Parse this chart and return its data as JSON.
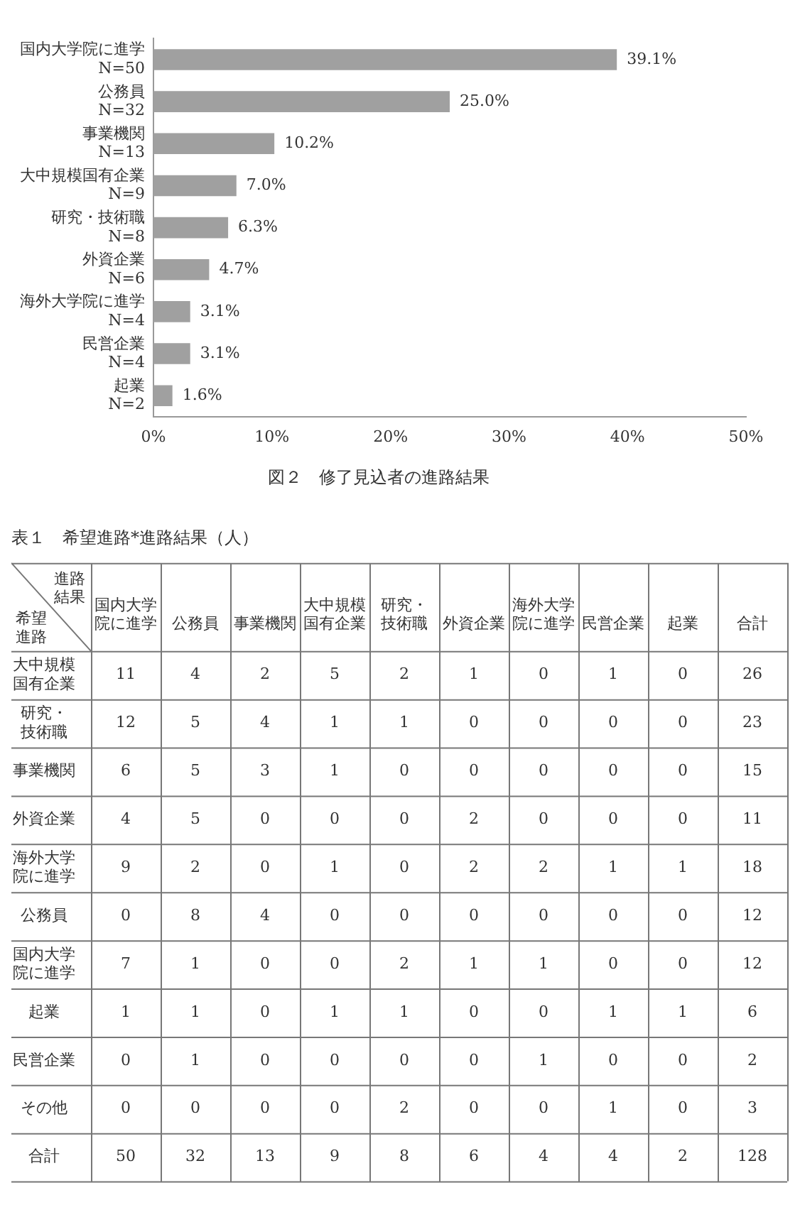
{
  "chart_data": [
    {
      "type": "bar",
      "orientation": "horizontal",
      "title": "図２　修了見込者の進路結果",
      "categories": [
        "国内大学院に進学\nN=50",
        "公務員\nN=32",
        "事業機関\nN=13",
        "大中規模国有企業\nN=9",
        "研究・技術職\nN=8",
        "外資企業\nN=6",
        "海外大学院に進学\nN=4",
        "民営企業\nN=4",
        "起業\nN=2"
      ],
      "values": [
        39.1,
        25.0,
        10.2,
        7.0,
        6.3,
        4.7,
        3.1,
        3.1,
        1.6
      ],
      "value_labels": [
        "39.1%",
        "25.0%",
        "10.2%",
        "7.0%",
        "6.3%",
        "4.7%",
        "3.1%",
        "3.1%",
        "1.6%"
      ],
      "color": "#a0a0a0",
      "xlim": [
        0,
        50
      ],
      "xticks": [
        {
          "value": 0,
          "label": "0%"
        },
        {
          "value": 10,
          "label": "10%"
        },
        {
          "value": 20,
          "label": "20%"
        },
        {
          "value": 30,
          "label": "30%"
        },
        {
          "value": 40,
          "label": "40%"
        },
        {
          "value": 50,
          "label": "50%"
        }
      ],
      "grid": false
    },
    {
      "type": "heatmap",
      "title": "表１　希望進路*進路結果（人）",
      "xlabel": "進路結果",
      "ylabel": "希望進路",
      "categories": [
        "国内大学院に進学",
        "公務員",
        "事業機関",
        "大中規模国有企業",
        "研究・技術職",
        "外資企業",
        "海外大学院に進学",
        "民営企業",
        "起業",
        "合計"
      ],
      "data_labels": true,
      "y_categories": [
        "大中規模国有企業",
        "研究・技術職",
        "事業機関",
        "外資企業",
        "海外大学院に進学",
        "公務員",
        "国内大学院に進学",
        "起業",
        "民営企業",
        "その他",
        "合計"
      ],
      "cells": [
        [
          11,
          4,
          2,
          5,
          2,
          1,
          0,
          1,
          0,
          26
        ],
        [
          12,
          5,
          4,
          1,
          1,
          0,
          0,
          0,
          0,
          23
        ],
        [
          6,
          5,
          3,
          1,
          0,
          0,
          0,
          0,
          0,
          15
        ],
        [
          4,
          5,
          0,
          0,
          0,
          2,
          0,
          0,
          0,
          11
        ],
        [
          9,
          2,
          0,
          1,
          0,
          2,
          2,
          1,
          1,
          18
        ],
        [
          0,
          8,
          4,
          0,
          0,
          0,
          0,
          0,
          0,
          12
        ],
        [
          7,
          1,
          0,
          0,
          2,
          1,
          1,
          0,
          0,
          12
        ],
        [
          1,
          1,
          0,
          1,
          1,
          0,
          0,
          1,
          1,
          6
        ],
        [
          0,
          1,
          0,
          0,
          0,
          0,
          1,
          0,
          0,
          2
        ],
        [
          0,
          0,
          0,
          0,
          2,
          0,
          0,
          1,
          0,
          3
        ],
        [
          50,
          32,
          13,
          9,
          8,
          6,
          4,
          4,
          2,
          128
        ]
      ]
    }
  ]
}
